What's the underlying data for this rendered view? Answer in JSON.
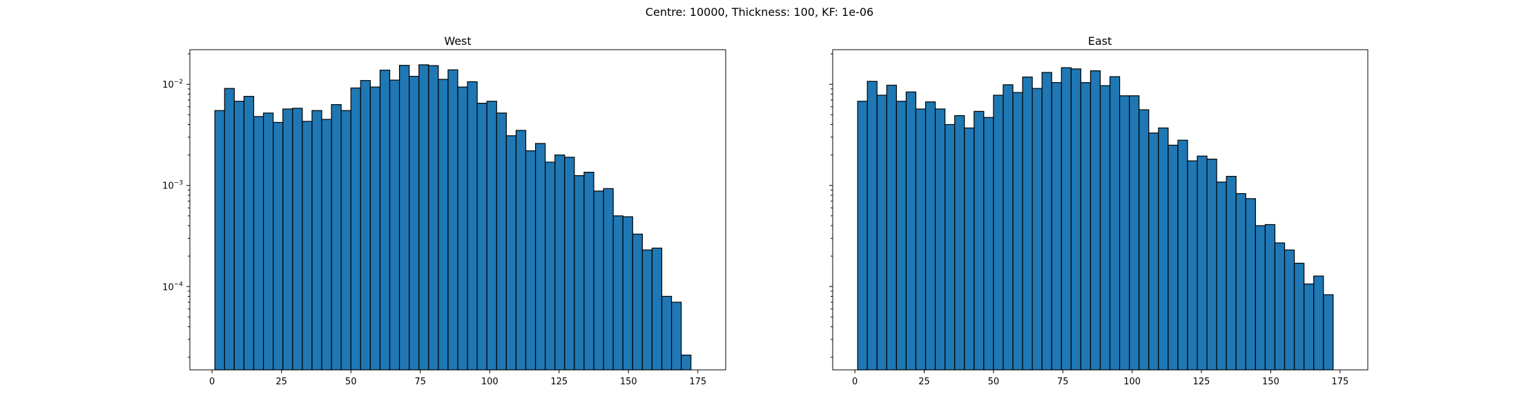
{
  "suptitle": "Centre: 10000, Thickness: 100, KF: 1e-06",
  "chart_data": [
    {
      "type": "bar",
      "title": "West",
      "xlabel": "",
      "ylabel": "",
      "yscale": "log",
      "bin_width": 3.5,
      "bins_start": 1,
      "xlim": [
        -8,
        185
      ],
      "ylim": [
        1.5e-05,
        0.022
      ],
      "xticks": [
        0,
        25,
        50,
        75,
        100,
        125,
        150,
        175
      ],
      "ytick_labels": [
        {
          "value": 0.0001,
          "base": "10",
          "exp": "−4"
        },
        {
          "value": 0.001,
          "base": "10",
          "exp": "−3"
        },
        {
          "value": 0.01,
          "base": "10",
          "exp": "−2"
        }
      ],
      "values": [
        0.0055,
        0.0091,
        0.0068,
        0.0076,
        0.0048,
        0.0052,
        0.0042,
        0.0057,
        0.0058,
        0.0043,
        0.0055,
        0.0045,
        0.0063,
        0.0055,
        0.0092,
        0.0109,
        0.0094,
        0.0138,
        0.011,
        0.0154,
        0.012,
        0.0156,
        0.0153,
        0.0112,
        0.0139,
        0.0094,
        0.0106,
        0.0065,
        0.0068,
        0.0052,
        0.0031,
        0.0035,
        0.0022,
        0.0026,
        0.0017,
        0.002,
        0.0019,
        0.00125,
        0.00135,
        0.00088,
        0.00093,
        0.0005,
        0.00049,
        0.00033,
        0.00023,
        0.00024,
        8e-05,
        7e-05,
        2.1e-05
      ],
      "color": "#1f77b4",
      "edgecolor": "#000000"
    },
    {
      "type": "bar",
      "title": "East",
      "xlabel": "",
      "ylabel": "",
      "yscale": "log",
      "bin_width": 3.5,
      "bins_start": 1,
      "xlim": [
        -8,
        185
      ],
      "ylim": [
        1.5e-05,
        0.022
      ],
      "xticks": [
        0,
        25,
        50,
        75,
        100,
        125,
        150,
        175
      ],
      "values": [
        0.0068,
        0.0107,
        0.0078,
        0.0098,
        0.0068,
        0.0084,
        0.0057,
        0.0067,
        0.0057,
        0.004,
        0.0049,
        0.0037,
        0.0054,
        0.0047,
        0.0078,
        0.0099,
        0.0083,
        0.0118,
        0.0091,
        0.0131,
        0.0104,
        0.0146,
        0.0142,
        0.0104,
        0.0136,
        0.0097,
        0.0119,
        0.0077,
        0.0077,
        0.0056,
        0.0033,
        0.0037,
        0.0025,
        0.0028,
        0.00175,
        0.00195,
        0.00182,
        0.00108,
        0.00123,
        0.00083,
        0.00074,
        0.0004,
        0.00041,
        0.00027,
        0.00023,
        0.00017,
        0.000106,
        0.000127,
        8.3e-05
      ],
      "color": "#1f77b4",
      "edgecolor": "#000000"
    }
  ]
}
